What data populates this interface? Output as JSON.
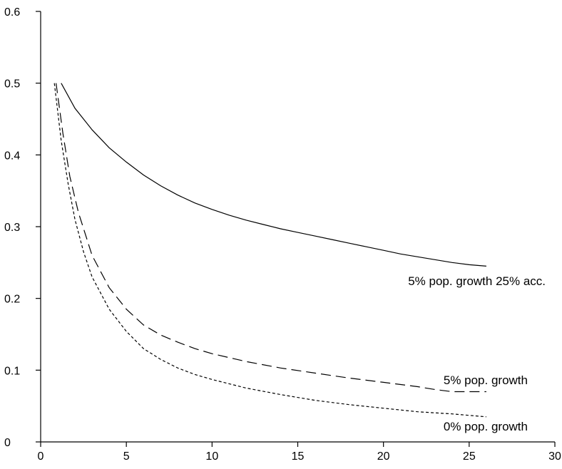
{
  "chart_data": {
    "type": "line",
    "title": "",
    "xlabel": "",
    "ylabel": "",
    "xlim": [
      0,
      30
    ],
    "ylim": [
      0,
      0.6
    ],
    "x_ticks": [
      0,
      5,
      10,
      15,
      20,
      25,
      30
    ],
    "x_tick_labels": [
      "0",
      "5",
      "10",
      "15",
      "20",
      "25",
      "30"
    ],
    "y_ticks": [
      0,
      0.1,
      0.2,
      0.3,
      0.4,
      0.5,
      0.6
    ],
    "y_tick_labels": [
      "0",
      "0.1",
      "0.2",
      "0.3",
      "0.4",
      "0.5",
      "0.6"
    ],
    "grid": false,
    "legend": "inline labels near line ends",
    "series": [
      {
        "name": "5% pop. growth 25% acc.",
        "dash": "solid",
        "x": [
          1.2,
          2,
          3,
          4,
          5,
          6,
          7,
          8,
          9,
          10,
          11,
          12,
          13,
          14,
          15,
          16,
          17,
          18,
          19,
          20,
          21,
          22,
          23,
          24,
          25,
          26
        ],
        "y": [
          0.5,
          0.465,
          0.435,
          0.41,
          0.39,
          0.372,
          0.357,
          0.344,
          0.333,
          0.324,
          0.316,
          0.309,
          0.303,
          0.297,
          0.292,
          0.287,
          0.282,
          0.277,
          0.272,
          0.267,
          0.262,
          0.258,
          0.254,
          0.25,
          0.247,
          0.245
        ]
      },
      {
        "name": "5% pop. growth",
        "dash": "long-dash",
        "x": [
          0.9,
          1.3,
          1.7,
          2.2,
          3,
          4,
          5,
          6,
          7,
          8,
          9,
          10,
          12,
          14,
          16,
          18,
          20,
          22,
          23,
          24,
          25,
          26
        ],
        "y": [
          0.5,
          0.43,
          0.37,
          0.32,
          0.26,
          0.215,
          0.185,
          0.163,
          0.149,
          0.139,
          0.13,
          0.123,
          0.112,
          0.103,
          0.096,
          0.089,
          0.083,
          0.077,
          0.073,
          0.07,
          0.07,
          0.07
        ]
      },
      {
        "name": "0% pop. growth",
        "dash": "short-dash",
        "x": [
          0.8,
          1.2,
          1.6,
          2,
          2.5,
          3,
          4,
          5,
          6,
          7,
          8,
          9,
          10,
          12,
          14,
          16,
          18,
          20,
          22,
          24,
          26
        ],
        "y": [
          0.5,
          0.42,
          0.36,
          0.31,
          0.265,
          0.23,
          0.185,
          0.154,
          0.13,
          0.115,
          0.103,
          0.094,
          0.087,
          0.075,
          0.066,
          0.058,
          0.052,
          0.047,
          0.042,
          0.039,
          0.035
        ]
      }
    ]
  }
}
